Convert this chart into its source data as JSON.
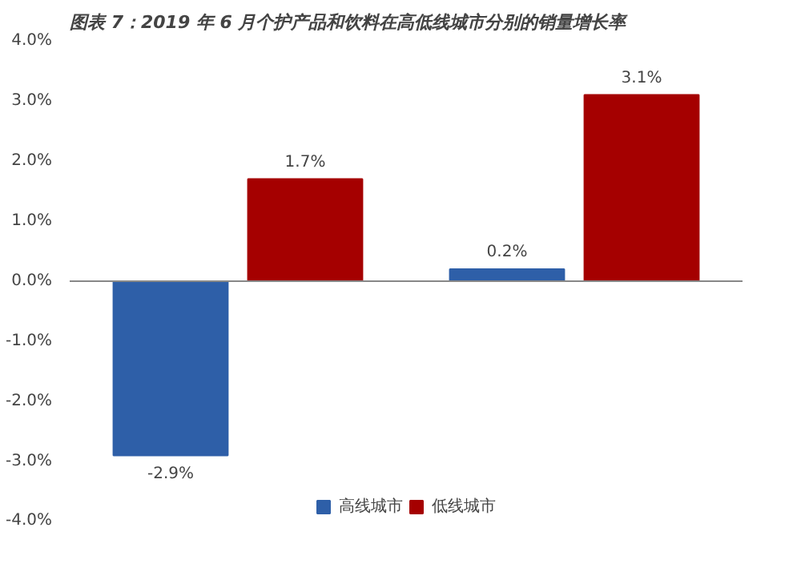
{
  "chart_data": {
    "type": "bar",
    "title": "图表 7：2019 年 6 月个护产品和饮料在高低线城市分别的销量增长率",
    "categories": [
      null,
      null
    ],
    "series": [
      {
        "name": "高线城市",
        "color": "#2e5fa8",
        "values": [
          -2.9,
          0.2
        ],
        "value_labels": [
          "-2.9%",
          "0.2%"
        ]
      },
      {
        "name": "低线城市",
        "color": "#a50000",
        "values": [
          1.7,
          3.1
        ],
        "value_labels": [
          "1.7%",
          "3.1%"
        ]
      }
    ],
    "ylim": [
      -4,
      4
    ],
    "yticks": [
      {
        "value": -4,
        "label": "-4.0%"
      },
      {
        "value": -3,
        "label": "-3.0%"
      },
      {
        "value": -2,
        "label": "-2.0%"
      },
      {
        "value": -1,
        "label": "-1.0%"
      },
      {
        "value": 0,
        "label": "0.0%"
      },
      {
        "value": 1,
        "label": "1.0%"
      },
      {
        "value": 2,
        "label": "2.0%"
      },
      {
        "value": 3,
        "label": "3.0%"
      },
      {
        "value": 4,
        "label": "4.0%"
      }
    ],
    "legend": "bottom"
  }
}
